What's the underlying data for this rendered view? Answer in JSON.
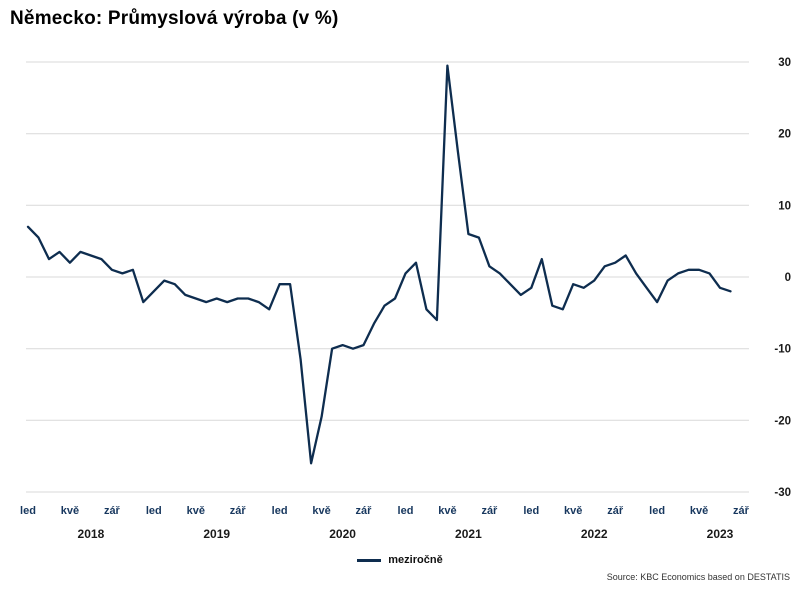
{
  "title": "Německo: Průmyslová výroba (v %)",
  "legend": {
    "label": "meziročně"
  },
  "source": "Source: KBC Economics based on DESTATIS",
  "colors": {
    "line": "#0e2d4f",
    "grid": "#d9d9d9",
    "month_tick_label": "#17375e",
    "year_label": "#1a1a1a",
    "y_tick_label": "#1a1a1a"
  },
  "chart_data": {
    "type": "line",
    "title": "Německo: Průmyslová výroba (v %)",
    "ylabel": "%",
    "ylim": [
      -30,
      30
    ],
    "grid": "horizontal",
    "legend_position": "bottom",
    "x_start_month": "2018-01",
    "x_end_month": "2023-08",
    "x_ticks": [
      "led",
      "kvě",
      "zář",
      "led",
      "kvě",
      "zář",
      "led",
      "kvě",
      "zář",
      "led",
      "kvě",
      "zář",
      "led",
      "kvě",
      "zář",
      "led",
      "kvě",
      "zář"
    ],
    "year_labels": [
      "2018",
      "2019",
      "2020",
      "2021",
      "2022",
      "2023"
    ],
    "y_ticks": [
      30,
      20,
      10,
      0,
      -10,
      -20,
      -30
    ],
    "series": [
      {
        "name": "meziročně",
        "values": [
          7,
          5.5,
          2.5,
          3.5,
          2,
          3.5,
          3,
          2.5,
          1,
          0.5,
          1,
          -3.5,
          -2,
          -0.5,
          -1,
          -2.5,
          -3,
          -3.5,
          -3,
          -3.5,
          -3,
          -3,
          -3.5,
          -4.5,
          -1,
          -1,
          -11.5,
          -26,
          -19.5,
          -10,
          -9.5,
          -10,
          -9.5,
          -6.5,
          -4,
          -3,
          0.5,
          2,
          -4.5,
          -6,
          29.5,
          17.5,
          6,
          5.5,
          1.5,
          0.5,
          -1,
          -2.5,
          -1.5,
          2.5,
          -4,
          -4.5,
          -1,
          -1.5,
          -0.5,
          1.5,
          2,
          3,
          0.5,
          -1.5,
          -3.5,
          -0.5,
          0.5,
          1,
          1,
          0.5,
          -1.5,
          -2
        ]
      }
    ]
  }
}
